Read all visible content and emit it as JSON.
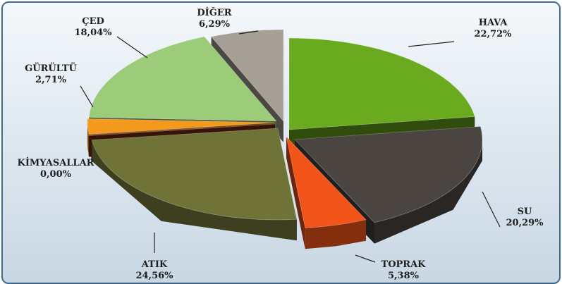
{
  "chart_data": {
    "type": "pie",
    "three_d": true,
    "exploded": true,
    "slices": [
      {
        "name": "HAVA",
        "value_label": "22,72%",
        "value": 22.72,
        "color": "#6aaa1e"
      },
      {
        "name": "SU",
        "value_label": "20,29%",
        "value": 20.29,
        "color": "#4a4540"
      },
      {
        "name": "TOPRAK",
        "value_label": "5,38%",
        "value": 5.38,
        "color": "#f2541a"
      },
      {
        "name": "ATIK",
        "value_label": "24,56%",
        "value": 24.56,
        "color": "#6f7337"
      },
      {
        "name": "KİMYASALLAR",
        "value_label": "0,00%",
        "value": 0.0,
        "color": "#7a2d10"
      },
      {
        "name": "GÜRÜLTÜ",
        "value_label": "2,71%",
        "value": 2.71,
        "color": "#f39a1e"
      },
      {
        "name": "ÇED",
        "value_label": "18,04%",
        "value": 18.04,
        "color": "#9ccb7a"
      },
      {
        "name": "DİĞER",
        "value_label": "6,29%",
        "value": 6.29,
        "color": "#a69f96"
      }
    ]
  }
}
